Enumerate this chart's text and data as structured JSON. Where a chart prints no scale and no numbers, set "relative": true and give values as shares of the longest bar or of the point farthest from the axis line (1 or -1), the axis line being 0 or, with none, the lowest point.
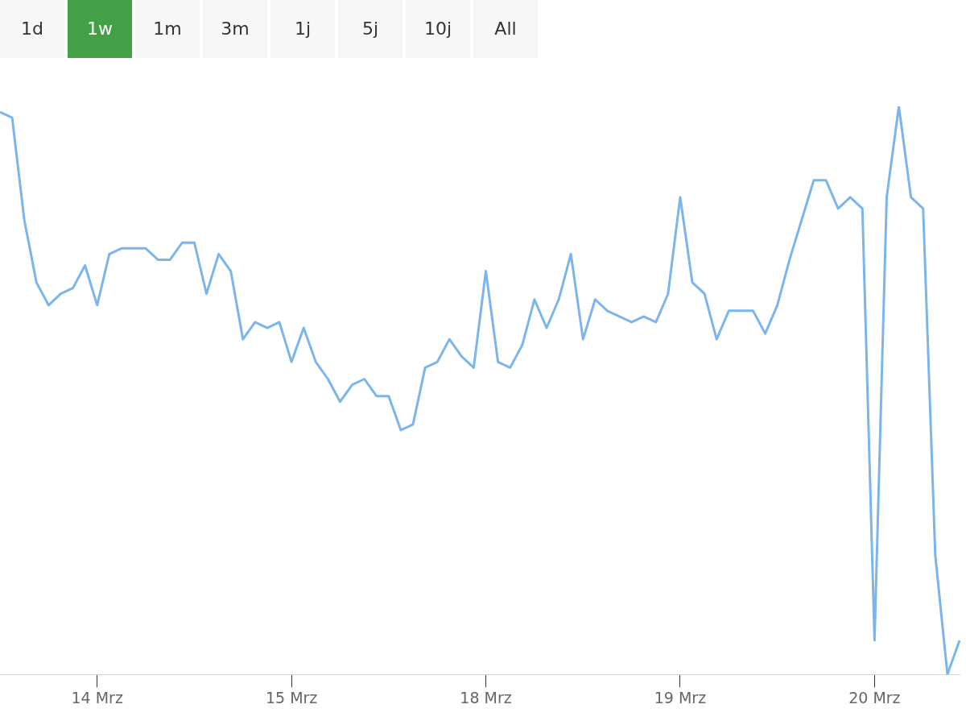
{
  "chart_data": {
    "type": "line",
    "relative": true,
    "legend": false,
    "marker": "none",
    "line_style": "solid",
    "annotations": [
      "1d",
      "1w",
      "1m",
      "3m",
      "1j",
      "5j",
      "10j",
      "All"
    ],
    "categories": [
      null,
      null,
      null,
      null,
      null,
      null,
      null,
      null,
      "14 Mrz",
      null,
      null,
      null,
      null,
      null,
      null,
      null,
      null,
      null,
      null,
      null,
      null,
      null,
      null,
      null,
      "15 Mrz",
      null,
      null,
      null,
      null,
      null,
      null,
      null,
      null,
      null,
      null,
      null,
      null,
      null,
      null,
      null,
      "18 Mrz",
      null,
      null,
      null,
      null,
      null,
      null,
      null,
      null,
      null,
      null,
      null,
      null,
      null,
      null,
      null,
      "19 Mrz",
      null,
      null,
      null,
      null,
      null,
      null,
      null,
      null,
      null,
      null,
      null,
      null,
      null,
      null,
      null,
      "20 Mrz",
      null,
      null,
      null,
      null,
      null,
      null,
      null
    ],
    "series": [
      {
        "color": "#7cb5ec",
        "values": [
          0.99,
          0.98,
          0.8,
          0.69,
          0.65,
          0.67,
          0.68,
          0.72,
          0.65,
          0.74,
          0.75,
          0.75,
          0.75,
          0.73,
          0.73,
          0.76,
          0.76,
          0.67,
          0.74,
          0.71,
          0.59,
          0.62,
          0.61,
          0.62,
          0.55,
          0.61,
          0.55,
          0.52,
          0.48,
          0.51,
          0.52,
          0.49,
          0.49,
          0.43,
          0.44,
          0.54,
          0.55,
          0.59,
          0.56,
          0.54,
          0.71,
          0.55,
          0.54,
          0.58,
          0.66,
          0.61,
          0.66,
          0.74,
          0.59,
          0.66,
          0.64,
          0.63,
          0.62,
          0.63,
          0.62,
          0.67,
          0.84,
          0.69,
          0.67,
          0.59,
          0.64,
          0.64,
          0.64,
          0.6,
          0.65,
          0.73,
          0.8,
          0.87,
          0.87,
          0.82,
          0.84,
          0.82,
          0.06,
          0.84,
          1,
          0.84,
          0.82,
          0.21,
          0,
          0.06
        ]
      }
    ]
  }
}
